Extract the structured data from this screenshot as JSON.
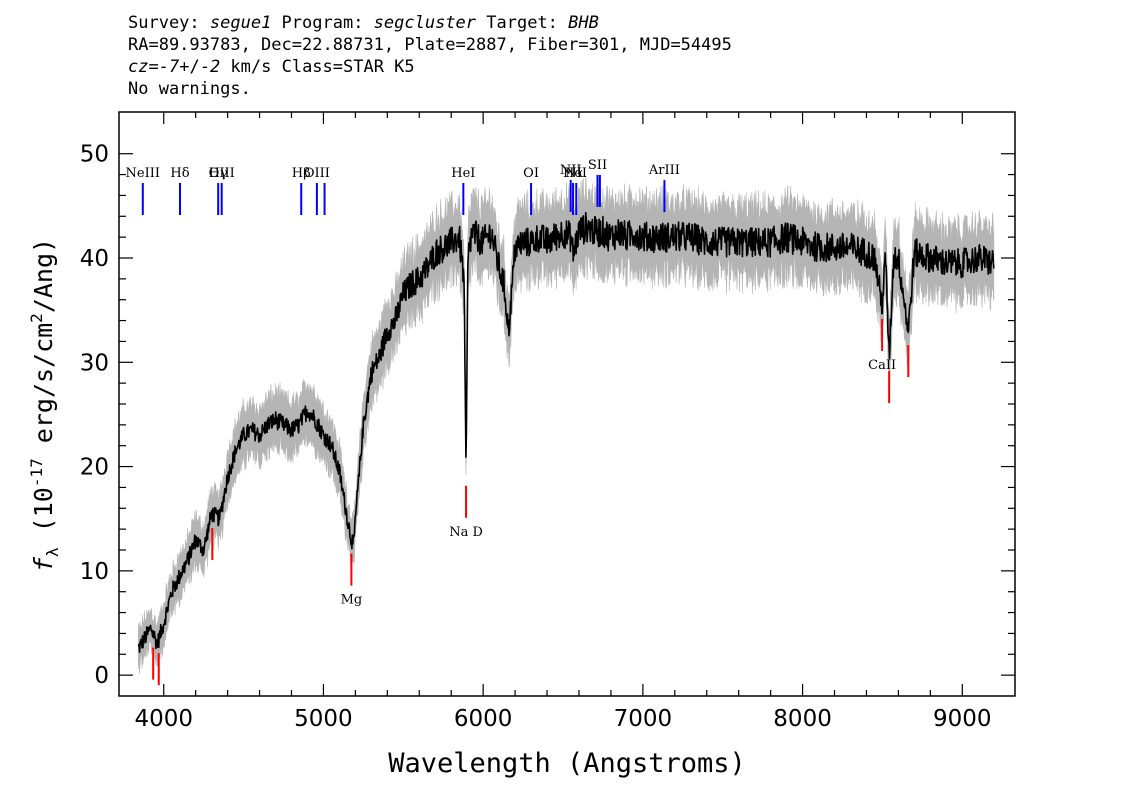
{
  "header": {
    "line1": [
      {
        "text": "Survey: ",
        "italic": false
      },
      {
        "text": "segue1",
        "italic": true
      },
      {
        "text": " Program: ",
        "italic": false
      },
      {
        "text": "segcluster",
        "italic": true
      },
      {
        "text": " Target: ",
        "italic": false
      },
      {
        "text": "BHB",
        "italic": true
      }
    ],
    "line2": "RA=89.93783, Dec=22.88731, Plate=2887, Fiber=301, MJD=54495",
    "line3": [
      {
        "text": "cz",
        "italic": true
      },
      {
        "text": "=",
        "italic": false
      },
      {
        "text": "-7",
        "italic": true
      },
      {
        "text": "+/-",
        "italic": false
      },
      {
        "text": "2",
        "italic": true
      },
      {
        "text": " km/s Class=STAR K5",
        "italic": false
      }
    ],
    "line4": "No warnings."
  },
  "chart_data": {
    "type": "line",
    "xlabel": "Wavelength (Angstroms)",
    "ylabel": "f_λ (10^-17 erg/s/cm^2/Ang)",
    "xlim": [
      3720,
      9330
    ],
    "ylim": [
      -2,
      54
    ],
    "xticks": [
      4000,
      5000,
      6000,
      7000,
      8000,
      9000
    ],
    "yticks": [
      0,
      10,
      20,
      30,
      40,
      50
    ],
    "series": [
      {
        "style": "black-line-gray-error",
        "x": [
          3840,
          3880,
          3920,
          3960,
          4000,
          4050,
          4100,
          4150,
          4200,
          4250,
          4300,
          4350,
          4400,
          4450,
          4500,
          4550,
          4600,
          4650,
          4700,
          4750,
          4800,
          4850,
          4900,
          4950,
          5000,
          5050,
          5100,
          5150,
          5175,
          5190,
          5200,
          5250,
          5300,
          5350,
          5400,
          5450,
          5500,
          5550,
          5600,
          5650,
          5700,
          5750,
          5800,
          5850,
          5880,
          5893,
          5905,
          5930,
          5960,
          6000,
          6050,
          6100,
          6130,
          6160,
          6200,
          6250,
          6300,
          6350,
          6400,
          6450,
          6500,
          6550,
          6563,
          6600,
          6650,
          6700,
          6750,
          6800,
          6850,
          6900,
          6950,
          7000,
          7100,
          7200,
          7300,
          7400,
          7500,
          7600,
          7700,
          7800,
          7900,
          8000,
          8100,
          8200,
          8300,
          8400,
          8450,
          8498,
          8520,
          8542,
          8570,
          8600,
          8662,
          8700,
          8800,
          8900,
          9000,
          9100,
          9200
        ],
        "y": [
          2.5,
          3.5,
          4.5,
          3.0,
          5.0,
          8.0,
          9.5,
          11.0,
          13.0,
          12.0,
          15.5,
          15.0,
          19.0,
          21.5,
          23.0,
          23.5,
          23.0,
          24.0,
          24.5,
          24.0,
          23.5,
          24.0,
          25.5,
          24.5,
          23.0,
          22.0,
          19.5,
          15.0,
          13.0,
          12.5,
          15.0,
          24.0,
          29.0,
          30.5,
          33.0,
          34.0,
          36.5,
          37.5,
          38.0,
          39.0,
          40.5,
          41.0,
          41.5,
          42.0,
          38.0,
          19.5,
          40.0,
          42.5,
          42.0,
          41.5,
          42.5,
          39.0,
          37.5,
          33.0,
          41.0,
          41.5,
          41.5,
          42.0,
          41.5,
          42.0,
          42.5,
          42.0,
          40.5,
          42.5,
          43.0,
          42.5,
          42.5,
          42.0,
          42.5,
          42.0,
          42.5,
          42.0,
          42.0,
          42.0,
          42.0,
          41.5,
          41.5,
          41.5,
          41.5,
          41.5,
          42.0,
          41.5,
          41.0,
          41.0,
          41.0,
          40.5,
          40.0,
          35.5,
          40.0,
          30.5,
          40.0,
          40.0,
          33.0,
          40.5,
          40.0,
          39.5,
          39.5,
          40.0,
          39.5
        ]
      }
    ],
    "emission_lines": [
      {
        "label": "NeIII",
        "x": 3869
      },
      {
        "label": "Hδ",
        "x": 4102
      },
      {
        "label": "Hγ",
        "x": 4341
      },
      {
        "label": "OIII",
        "x": 4363
      },
      {
        "label": "Hβ",
        "x": 4861
      },
      {
        "label": "OIII",
        "x": 4959
      },
      {
        "label": "",
        "x": 5007
      },
      {
        "label": "HeI",
        "x": 5876
      },
      {
        "label": "OI",
        "x": 6300
      },
      {
        "label": "NII",
        "x": 6548
      },
      {
        "label": "Hα",
        "x": 6563
      },
      {
        "label": "NII",
        "x": 6583
      },
      {
        "label": "SII",
        "x": 6716
      },
      {
        "label": "",
        "x": 6731
      },
      {
        "label": "ArIII",
        "x": 7135
      }
    ],
    "absorption_lines": [
      {
        "label": "",
        "x": 3934
      },
      {
        "label": "",
        "x": 3969
      },
      {
        "label": "",
        "x": 4304
      },
      {
        "label": "Mg",
        "x": 5175
      },
      {
        "label": "Na D",
        "x": 5893
      },
      {
        "label": "CaII",
        "x": 8498
      },
      {
        "label": "",
        "x": 8542
      },
      {
        "label": "",
        "x": 8662
      }
    ],
    "colors": {
      "spectrum": "#000000",
      "error": "#b4b4b4",
      "emission": "#0000ff",
      "absorption": "#ff0000",
      "axes": "#000000"
    }
  }
}
